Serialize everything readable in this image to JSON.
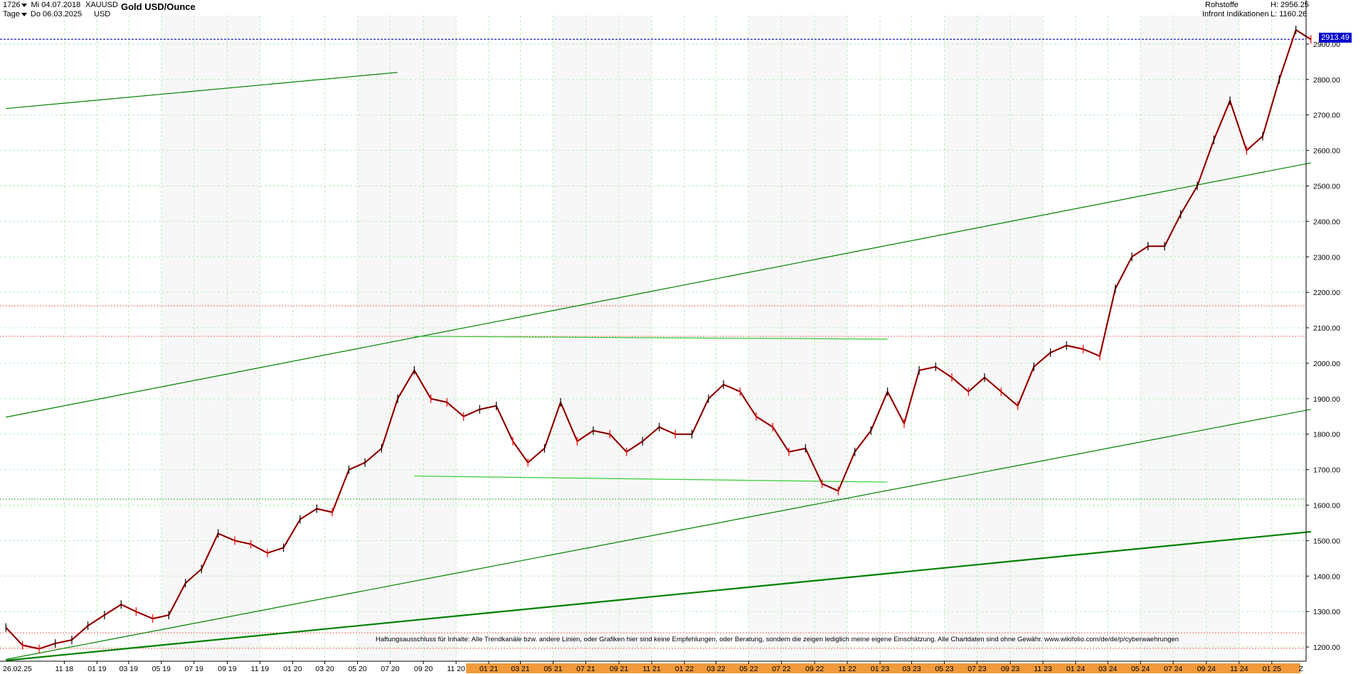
{
  "header": {
    "bar_count": "1726",
    "start_date": "Mi 04.07.2018",
    "symbol": "XAUUSD",
    "period": "Tage",
    "end_date": "Do 06.03.2025",
    "currency": "USD",
    "title": "Gold USD/Ounce",
    "category": "Rohstoffe",
    "source": "Infront Indikationen",
    "high_label": "H: 2956.25",
    "low_label": "L: 1160.26"
  },
  "last_price": "2913.49",
  "corner_label": "26.02.25",
  "axis_end_marker": "Z",
  "disclaimer": "Haftungsausschluss für Inhalte: Alle Trendkanäle bzw. andere Linien, oder Grafiken hier sind keine Empfehlungen, oder Beratung, sondern die zeigen lediglich meine eigene Einschätzung. Alle Chartdaten sind ohne Gewähr.  www.wikifolio.com/de/de/p/cyberwaehrungen",
  "colors": {
    "candle_up": "#000000",
    "candle_down": "#ff0000",
    "trend_line": "#008000",
    "trend_line_bright": "#33cc33",
    "price_line": "#0000cc",
    "support_dotted_red": "#ff6666",
    "support_dotted_green": "#33aa33",
    "grid": "#b8ecb8",
    "axis_band_orange": "#f09a3c"
  },
  "chart_data": {
    "type": "line",
    "title": "Gold USD/Ounce",
    "xlabel": "",
    "ylabel": "",
    "ylim": [
      1160,
      2980
    ],
    "y_ticks": [
      1200,
      1300,
      1400,
      1500,
      1600,
      1700,
      1800,
      1900,
      2000,
      2100,
      2200,
      2300,
      2400,
      2500,
      2600,
      2700,
      2800,
      2900
    ],
    "y_tick_labels": [
      "1200.00",
      "1300.00",
      "1400.00",
      "1500.00",
      "1600.00",
      "1700.00",
      "1800.00",
      "1900.00",
      "2000.00",
      "2100.00",
      "2200.00",
      "2300.00",
      "2400.00",
      "2500.00",
      "2600.00",
      "2700.00",
      "2800.00",
      "2900.00"
    ],
    "x_tick_labels": [
      "11 18",
      "01 19",
      "03 19",
      "05 19",
      "07 19",
      "09 19",
      "11 19",
      "01 20",
      "03 20",
      "05 20",
      "07 20",
      "09 20",
      "11 20",
      "01 21",
      "03 21",
      "05 21",
      "07 21",
      "09 21",
      "11 21",
      "01 22",
      "03 22",
      "05 22",
      "07 22",
      "09 22",
      "11 22",
      "01 23",
      "03 23",
      "05 23",
      "07 23",
      "09 23",
      "11 23",
      "01 24",
      "03 24",
      "05 24",
      "07 24",
      "09 24",
      "11 24",
      "01 25"
    ],
    "grid": true,
    "series": [
      {
        "x": [
          "2018-07",
          "2018-08",
          "2018-09",
          "2018-10",
          "2018-11",
          "2018-12",
          "2019-01",
          "2019-02",
          "2019-03",
          "2019-04",
          "2019-05",
          "2019-06",
          "2019-07",
          "2019-08",
          "2019-09",
          "2019-10",
          "2019-11",
          "2019-12",
          "2020-01",
          "2020-02",
          "2020-03",
          "2020-04",
          "2020-05",
          "2020-06",
          "2020-07",
          "2020-08",
          "2020-09",
          "2020-10",
          "2020-11",
          "2020-12",
          "2021-01",
          "2021-02",
          "2021-03",
          "2021-04",
          "2021-05",
          "2021-06",
          "2021-07",
          "2021-08",
          "2021-09",
          "2021-10",
          "2021-11",
          "2021-12",
          "2022-01",
          "2022-02",
          "2022-03",
          "2022-04",
          "2022-05",
          "2022-06",
          "2022-07",
          "2022-08",
          "2022-09",
          "2022-10",
          "2022-11",
          "2022-12",
          "2023-01",
          "2023-02",
          "2023-03",
          "2023-04",
          "2023-05",
          "2023-06",
          "2023-07",
          "2023-08",
          "2023-09",
          "2023-10",
          "2023-11",
          "2023-12",
          "2024-01",
          "2024-02",
          "2024-03",
          "2024-04",
          "2024-05",
          "2024-06",
          "2024-07",
          "2024-08",
          "2024-09",
          "2024-10",
          "2024-11",
          "2024-12",
          "2025-01",
          "2025-02",
          "2025-03"
        ],
        "values": [
          1255,
          1205,
          1195,
          1210,
          1220,
          1260,
          1290,
          1320,
          1300,
          1280,
          1290,
          1380,
          1420,
          1520,
          1500,
          1490,
          1465,
          1480,
          1560,
          1590,
          1580,
          1700,
          1720,
          1760,
          1900,
          1980,
          1900,
          1890,
          1850,
          1870,
          1880,
          1780,
          1720,
          1760,
          1890,
          1780,
          1810,
          1800,
          1750,
          1780,
          1820,
          1800,
          1800,
          1900,
          1940,
          1920,
          1850,
          1820,
          1750,
          1760,
          1660,
          1640,
          1750,
          1810,
          1920,
          1830,
          1980,
          1990,
          1960,
          1920,
          1960,
          1920,
          1880,
          1990,
          2030,
          2050,
          2040,
          2020,
          2210,
          2300,
          2330,
          2330,
          2420,
          2500,
          2630,
          2740,
          2600,
          2640,
          2800,
          2940,
          2913
        ]
      }
    ],
    "trend_lines": [
      {
        "name": "upper-channel",
        "from": [
          "2018-07",
          2718
        ],
        "to": [
          "2020-07",
          2820
        ]
      },
      {
        "name": "mid-channel-top",
        "from": [
          "2018-07",
          1848
        ],
        "to": [
          "2025-03",
          2565
        ]
      },
      {
        "name": "mid-channel-bottom",
        "from": [
          "2018-07",
          1165
        ],
        "to": [
          "2025-03",
          1870
        ]
      },
      {
        "name": "long-term-support",
        "from": [
          "2018-07",
          1162
        ],
        "to": [
          "2025-03",
          1525
        ]
      },
      {
        "name": "range-top",
        "from": [
          "2020-08",
          2076
        ],
        "to": [
          "2023-01",
          2068
        ]
      },
      {
        "name": "range-bottom",
        "from": [
          "2020-08",
          1682
        ],
        "to": [
          "2023-01",
          1665
        ]
      }
    ],
    "horizontal_levels": [
      {
        "value": 2913.49,
        "style": "dotted-blue"
      },
      {
        "value": 2162,
        "style": "dotted-red"
      },
      {
        "value": 2076,
        "style": "dotted-red"
      },
      {
        "value": 1617,
        "style": "dotted-green"
      },
      {
        "value": 1240,
        "style": "dotted-red"
      },
      {
        "value": 1196,
        "style": "dotted-red"
      }
    ]
  }
}
